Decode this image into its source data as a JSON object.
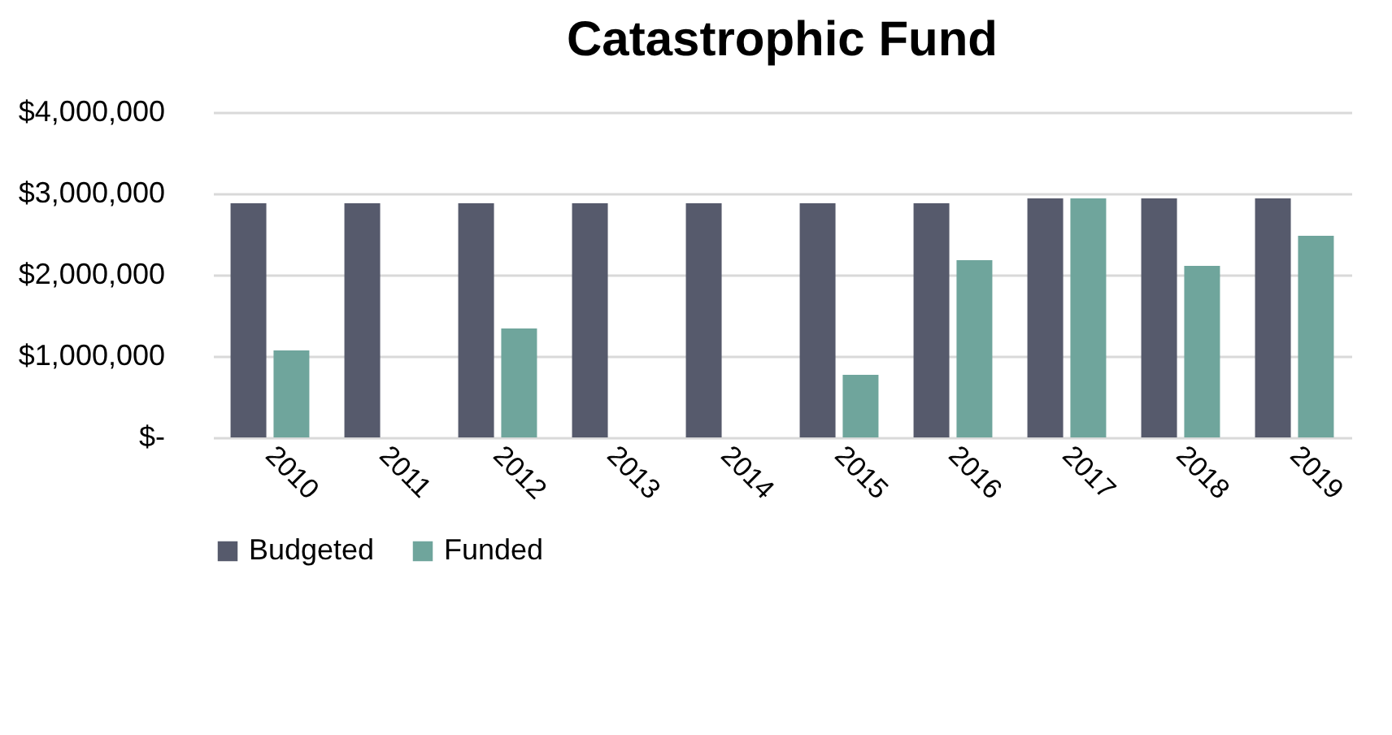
{
  "chart_data": {
    "type": "bar",
    "title": "Catastrophic Fund",
    "categories": [
      "2010",
      "2011",
      "2012",
      "2013",
      "2014",
      "2015",
      "2016",
      "2017",
      "2018",
      "2019"
    ],
    "series": [
      {
        "name": "Budgeted",
        "color": "#565a6c",
        "values": [
          2880000,
          2880000,
          2880000,
          2880000,
          2880000,
          2880000,
          2880000,
          2940000,
          2940000,
          2940000
        ]
      },
      {
        "name": "Funded",
        "color": "#6fa59c",
        "values": [
          1070000,
          null,
          1340000,
          null,
          null,
          770000,
          2180000,
          2940000,
          2110000,
          2480000
        ]
      }
    ],
    "ylim": [
      0,
      4000000
    ],
    "yticks": [
      {
        "value": 0,
        "label": "$-"
      },
      {
        "value": 1000000,
        "label": "$1,000,000"
      },
      {
        "value": 2000000,
        "label": "$2,000,000"
      },
      {
        "value": 3000000,
        "label": "$3,000,000"
      },
      {
        "value": 4000000,
        "label": "$4,000,000"
      }
    ],
    "grid": "y",
    "legend": "bottom"
  }
}
